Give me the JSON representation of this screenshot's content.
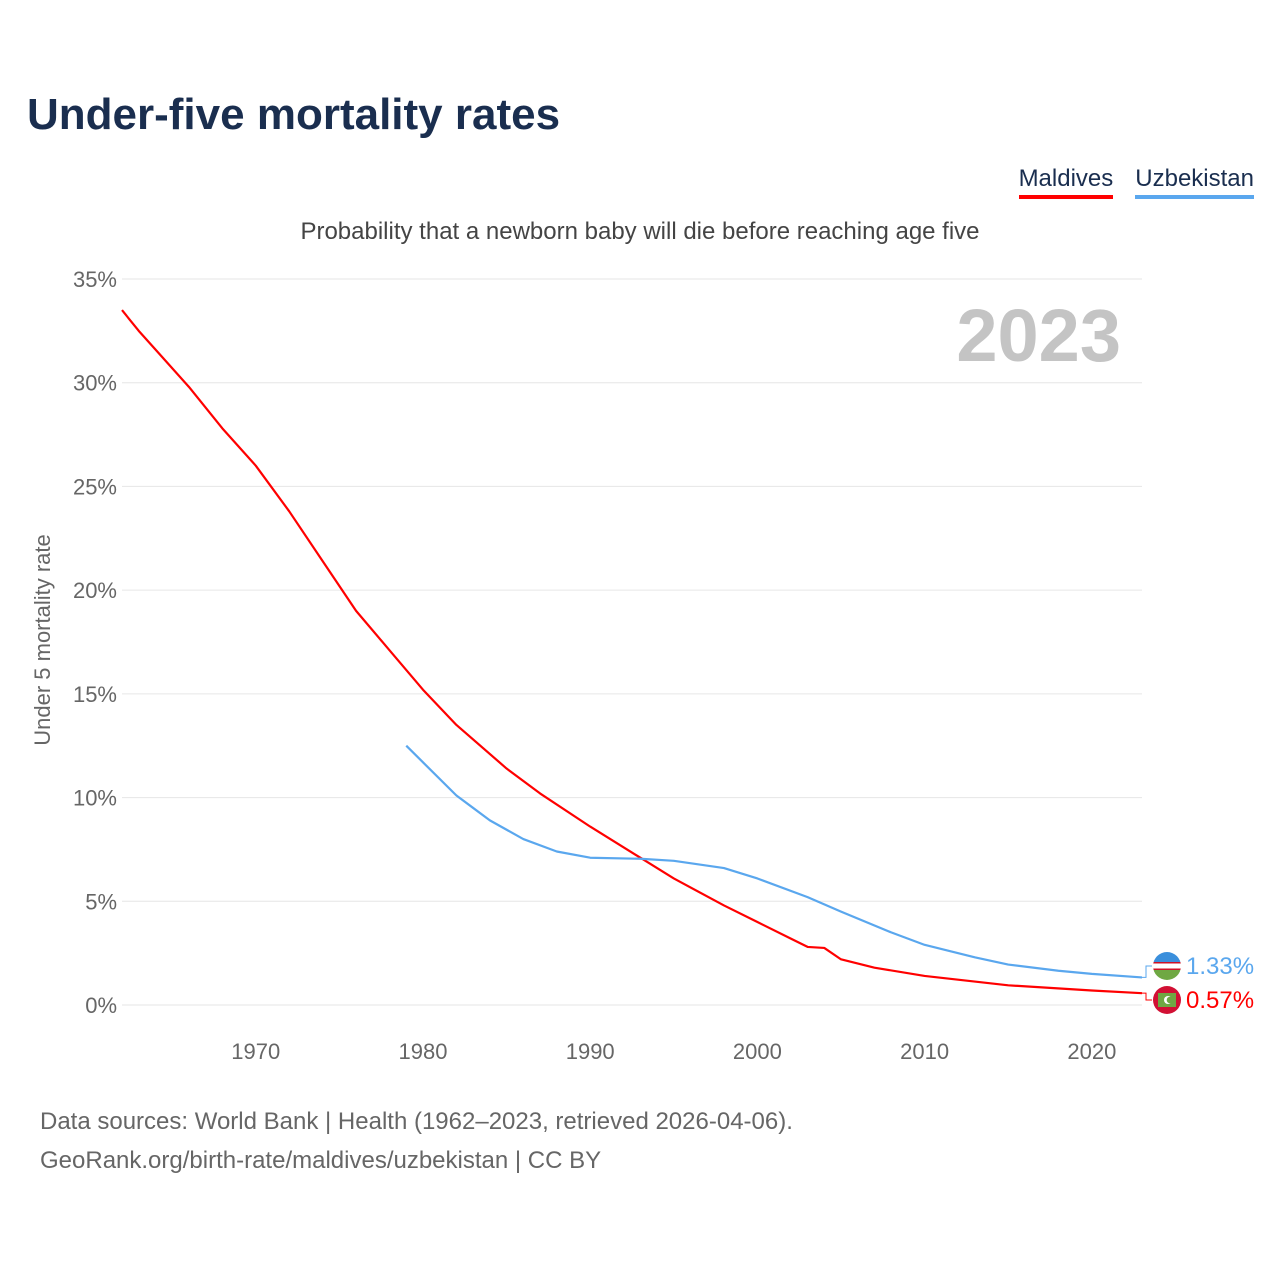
{
  "title": "Under-five mortality rates",
  "subtitle": "Probability that a newborn baby will die before reaching age five",
  "year_watermark": "2023",
  "footer": {
    "line1": "Data sources: World Bank | Health (1962–2023, retrieved 2026-04-06).",
    "line2": "GeoRank.org/birth-rate/maldives/uzbekistan | CC BY"
  },
  "chart_data": {
    "type": "line",
    "title": "Under-five mortality rates",
    "ylabel": "Under 5 mortality rate",
    "xlabel": "",
    "xlim": [
      1962,
      2023
    ],
    "ylim": [
      0,
      35
    ],
    "x_ticks": [
      1970,
      1980,
      1990,
      2000,
      2010,
      2020
    ],
    "y_ticks": [
      0,
      5,
      10,
      15,
      20,
      25,
      30,
      35
    ],
    "y_tick_labels": [
      "0%",
      "5%",
      "10%",
      "15%",
      "20%",
      "25%",
      "30%",
      "35%"
    ],
    "grid": true,
    "legend": "top-right",
    "series": [
      {
        "name": "Maldives",
        "color": "#ff0000",
        "end_label": "0.57%",
        "flag": "maldives-flag",
        "x": [
          1962,
          1963,
          1964,
          1966,
          1968,
          1970,
          1972,
          1974,
          1976,
          1978,
          1980,
          1982,
          1985,
          1987,
          1990,
          1993,
          1995,
          1998,
          2000,
          2002,
          2003,
          2004,
          2005,
          2007,
          2010,
          2015,
          2020,
          2023
        ],
        "y": [
          33.5,
          32.5,
          31.6,
          29.8,
          27.8,
          26.0,
          23.8,
          21.4,
          19.0,
          17.1,
          15.2,
          13.5,
          11.4,
          10.2,
          8.6,
          7.1,
          6.1,
          4.8,
          4.0,
          3.2,
          2.8,
          2.75,
          2.2,
          1.8,
          1.4,
          0.95,
          0.7,
          0.57
        ]
      },
      {
        "name": "Uzbekistan",
        "color": "#5aa7ee",
        "end_label": "1.33%",
        "flag": "uzbekistan-flag",
        "x": [
          1979,
          1980,
          1982,
          1983,
          1984,
          1986,
          1988,
          1990,
          1993,
          1995,
          1998,
          2000,
          2003,
          2005,
          2008,
          2010,
          2013,
          2015,
          2018,
          2020,
          2023
        ],
        "y": [
          12.5,
          11.7,
          10.1,
          9.5,
          8.9,
          8.0,
          7.4,
          7.1,
          7.05,
          6.95,
          6.6,
          6.1,
          5.2,
          4.5,
          3.5,
          2.9,
          2.3,
          1.95,
          1.65,
          1.5,
          1.33
        ]
      }
    ]
  }
}
